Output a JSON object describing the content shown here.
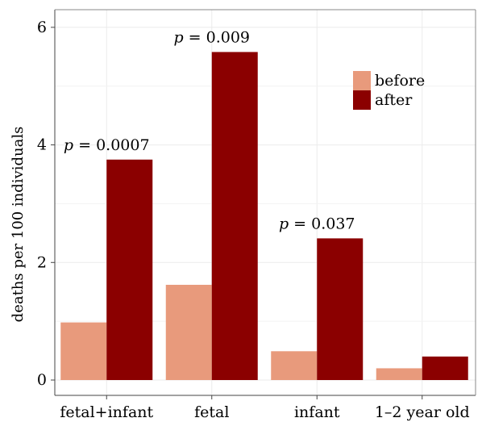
{
  "chart_data": {
    "type": "bar",
    "ylabel": "deaths per 100 individuals",
    "xlabel": "",
    "categories": [
      "fetal+infant",
      "fetal",
      "infant",
      "1–2 year old"
    ],
    "series": [
      {
        "name": "before",
        "color": "#E89A7C",
        "values": [
          0.98,
          1.62,
          0.49,
          0.2
        ]
      },
      {
        "name": "after",
        "color": "#8B0000",
        "values": [
          3.75,
          5.58,
          2.41,
          0.4
        ]
      }
    ],
    "ylim": [
      0,
      6.3
    ],
    "yticks": [
      0,
      2,
      4,
      6
    ],
    "ytick_labels": [
      "0",
      "2",
      "4",
      "6"
    ],
    "grid": true,
    "legend_position": "top-right",
    "annotations": [
      {
        "category": "fetal+infant",
        "p": "p",
        "text": " = 0.0007"
      },
      {
        "category": "fetal",
        "p": "p",
        "text": " = 0.009"
      },
      {
        "category": "infant",
        "p": "p",
        "text": " = 0.037"
      }
    ]
  }
}
